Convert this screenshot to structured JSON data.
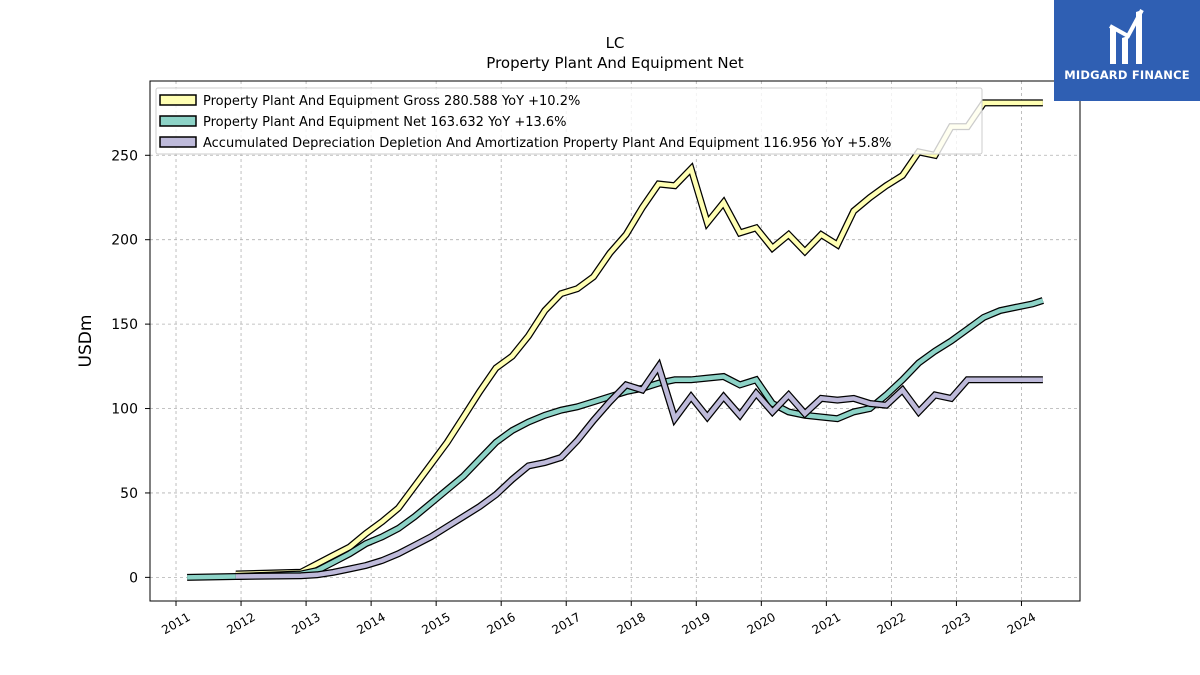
{
  "brand": {
    "name": "MIDGARD FINANCE",
    "bg_color": "#2f5fb3"
  },
  "chart_data": {
    "type": "line",
    "title": "LC",
    "subtitle": "Property Plant And Equipment Net",
    "xlabel": "",
    "ylabel": "USDm",
    "xlim": [
      2010.6,
      2024.9
    ],
    "ylim": [
      -14,
      294
    ],
    "x_ticks": [
      "2011",
      "2012",
      "2013",
      "2014",
      "2015",
      "2016",
      "2017",
      "2018",
      "2019",
      "2020",
      "2021",
      "2022",
      "2023",
      "2024"
    ],
    "y_ticks": [
      0,
      50,
      100,
      150,
      200,
      250
    ],
    "grid": true,
    "legend_position": "top-left",
    "series": [
      {
        "name": "Property Plant And Equipment Gross  280.588 YoY +10.2%",
        "color": "#ffffb3",
        "x": [
          2011.92,
          2012.92,
          2013.17,
          2013.42,
          2013.67,
          2013.92,
          2014.17,
          2014.42,
          2014.67,
          2014.92,
          2015.17,
          2015.42,
          2015.67,
          2015.92,
          2016.17,
          2016.42,
          2016.67,
          2016.92,
          2017.17,
          2017.42,
          2017.67,
          2017.92,
          2018.17,
          2018.42,
          2018.67,
          2018.92,
          2019.17,
          2019.42,
          2019.67,
          2019.92,
          2020.17,
          2020.42,
          2020.67,
          2020.92,
          2021.17,
          2021.42,
          2021.67,
          2021.92,
          2022.17,
          2022.42,
          2022.67,
          2022.92,
          2023.17,
          2023.42,
          2023.67,
          2023.92,
          2024.17,
          2024.33
        ],
        "values": [
          2,
          3,
          8,
          13,
          18,
          26,
          33,
          41,
          54,
          67,
          80,
          95,
          110,
          124,
          131,
          143,
          158,
          168,
          171,
          178,
          192,
          203,
          219,
          233,
          232,
          242,
          210,
          222,
          204,
          207,
          195,
          203,
          193,
          203,
          197,
          217,
          225,
          232,
          238,
          252,
          250,
          267,
          267,
          281,
          281,
          281,
          281,
          281
        ]
      },
      {
        "name": "Property Plant And Equipment Net  163.632 YoY +13.6%",
        "color": "#8dd3c7",
        "x": [
          2011.17,
          2011.92,
          2012.92,
          2013.17,
          2013.42,
          2013.67,
          2013.92,
          2014.17,
          2014.42,
          2014.67,
          2014.92,
          2015.17,
          2015.42,
          2015.67,
          2015.92,
          2016.17,
          2016.42,
          2016.67,
          2016.92,
          2017.17,
          2017.42,
          2017.67,
          2017.92,
          2018.17,
          2018.42,
          2018.67,
          2018.92,
          2019.17,
          2019.42,
          2019.67,
          2019.92,
          2020.17,
          2020.42,
          2020.67,
          2020.92,
          2021.17,
          2021.42,
          2021.67,
          2021.92,
          2022.17,
          2022.42,
          2022.67,
          2022.92,
          2023.17,
          2023.42,
          2023.67,
          2023.92,
          2024.17,
          2024.33
        ],
        "values": [
          0,
          0.5,
          2,
          4,
          9,
          14,
          20,
          24,
          29,
          36,
          44,
          52,
          60,
          70,
          80,
          87,
          92,
          96,
          99,
          101,
          104,
          107,
          110,
          112,
          115,
          117,
          117,
          118,
          119,
          114,
          117,
          103,
          98,
          96,
          95,
          94,
          98,
          100,
          108,
          117,
          127,
          134,
          140,
          147,
          154,
          158,
          160,
          162,
          164
        ]
      },
      {
        "name": "Accumulated Depreciation Depletion And Amortization Property Plant And Equipment  116.956 YoY +5.8%",
        "color": "#bebada",
        "x": [
          2011.92,
          2012.92,
          2013.17,
          2013.42,
          2013.67,
          2013.92,
          2014.17,
          2014.42,
          2014.67,
          2014.92,
          2015.17,
          2015.42,
          2015.67,
          2015.92,
          2016.17,
          2016.42,
          2016.67,
          2016.92,
          2017.17,
          2017.42,
          2017.67,
          2017.92,
          2018.17,
          2018.42,
          2018.67,
          2018.92,
          2019.17,
          2019.42,
          2019.67,
          2019.92,
          2020.17,
          2020.42,
          2020.67,
          2020.92,
          2021.17,
          2021.42,
          2021.67,
          2021.92,
          2022.17,
          2022.42,
          2022.67,
          2022.92,
          2023.17,
          2023.42,
          2023.67,
          2023.92,
          2024.17,
          2024.33
        ],
        "values": [
          0.5,
          1,
          1.5,
          3,
          5,
          7,
          10,
          14,
          19,
          24,
          30,
          36,
          42,
          49,
          58,
          66,
          68,
          71,
          81,
          93,
          104,
          114,
          111,
          125,
          94,
          107,
          95,
          107,
          96,
          109,
          98,
          108,
          97,
          106,
          105,
          106,
          103,
          102,
          111,
          98,
          108,
          106,
          117,
          117,
          117,
          117,
          117,
          117
        ]
      }
    ]
  }
}
